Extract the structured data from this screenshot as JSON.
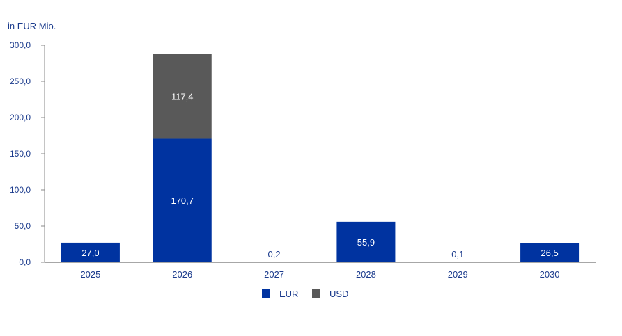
{
  "chart_data": {
    "type": "bar",
    "stacked": true,
    "ylabel": "in EUR Mio.",
    "ylim": [
      0,
      300
    ],
    "yticks": [
      0,
      50,
      100,
      150,
      200,
      250,
      300
    ],
    "ytick_labels": [
      "0,0",
      "50,0",
      "100,0",
      "150,0",
      "200,0",
      "250,0",
      "300,0"
    ],
    "categories": [
      "2025",
      "2026",
      "2027",
      "2028",
      "2029",
      "2030"
    ],
    "series": [
      {
        "name": "EUR",
        "color": "#0033a0",
        "values": [
          27.0,
          170.7,
          0.2,
          55.9,
          0.1,
          26.5
        ],
        "labels": [
          "27,0",
          "170,7",
          "0,2",
          "55,9",
          "0,1",
          "26,5"
        ]
      },
      {
        "name": "USD",
        "color": "#595959",
        "values": [
          0,
          117.4,
          0,
          0,
          0,
          0
        ],
        "labels": [
          "",
          "117,4",
          "",
          "",
          "",
          ""
        ]
      }
    ],
    "grid": false,
    "legend_position": "bottom-center",
    "colors": {
      "axis_text": "#1a3a8c",
      "axis_line": "#8a8a8a"
    }
  }
}
